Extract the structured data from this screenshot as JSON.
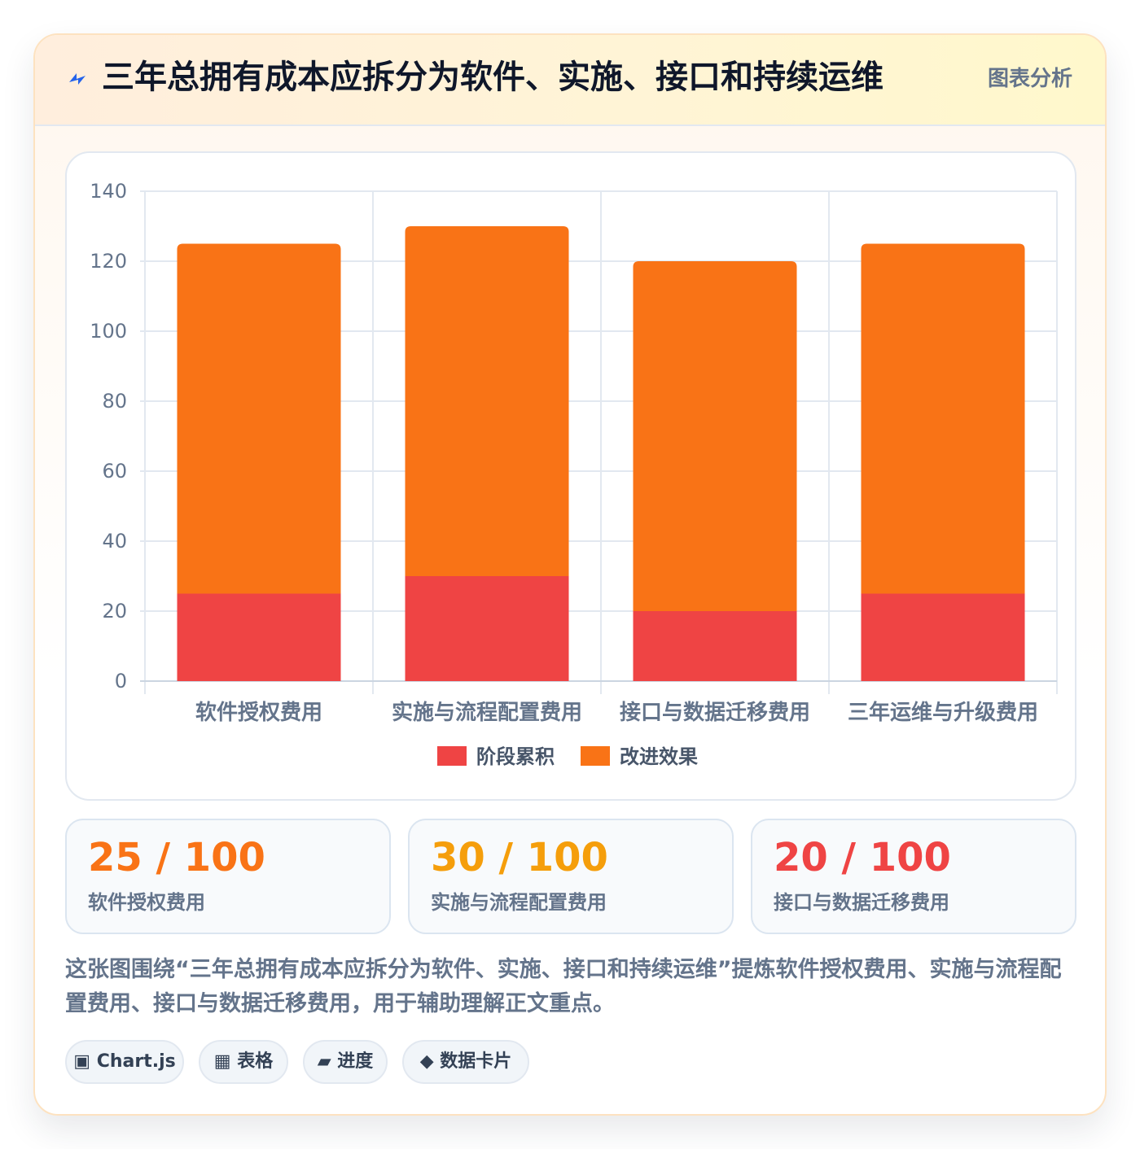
{
  "header": {
    "icon": "bolt-icon",
    "title": "三年总拥有成本应拆分为软件、实施、接口和持续运维",
    "link_label": "图表分析"
  },
  "chart_data": {
    "type": "bar",
    "stacked": true,
    "categories": [
      "软件授权费用",
      "实施与流程配置费用",
      "接口与数据迁移费用",
      "三年运维与升级费用"
    ],
    "series": [
      {
        "name": "阶段累积",
        "values": [
          25,
          30,
          20,
          25
        ],
        "color": "#ef4444"
      },
      {
        "name": "改进效果",
        "values": [
          100,
          100,
          100,
          100
        ],
        "color": "#f97316"
      }
    ],
    "yticks": [
      "0",
      "20",
      "40",
      "60",
      "80",
      "100",
      "120",
      "140"
    ],
    "ylim": [
      0,
      140
    ],
    "grid": true,
    "legend": "bottom"
  },
  "stats": [
    {
      "value": "25 / 100",
      "label": "软件授权费用",
      "color": "#f97316"
    },
    {
      "value": "30 / 100",
      "label": "实施与流程配置费用",
      "color": "#f59e0b"
    },
    {
      "value": "20 / 100",
      "label": "接口与数据迁移费用",
      "color": "#ef4444"
    }
  ],
  "caption": "这张图围绕“三年总拥有成本应拆分为软件、实施、接口和持续运维”提炼软件授权费用、实施与流程配置费用、接口与数据迁移费用，用于辅助理解正文重点。",
  "chips": [
    {
      "icon": "chart-square-icon",
      "glyph": "▣",
      "label": "Chart.js"
    },
    {
      "icon": "table-grid-icon",
      "glyph": "▦",
      "label": "表格"
    },
    {
      "icon": "progress-icon",
      "glyph": "▰",
      "label": "进度"
    },
    {
      "icon": "diamond-icon",
      "glyph": "◆",
      "label": "数据卡片"
    }
  ]
}
